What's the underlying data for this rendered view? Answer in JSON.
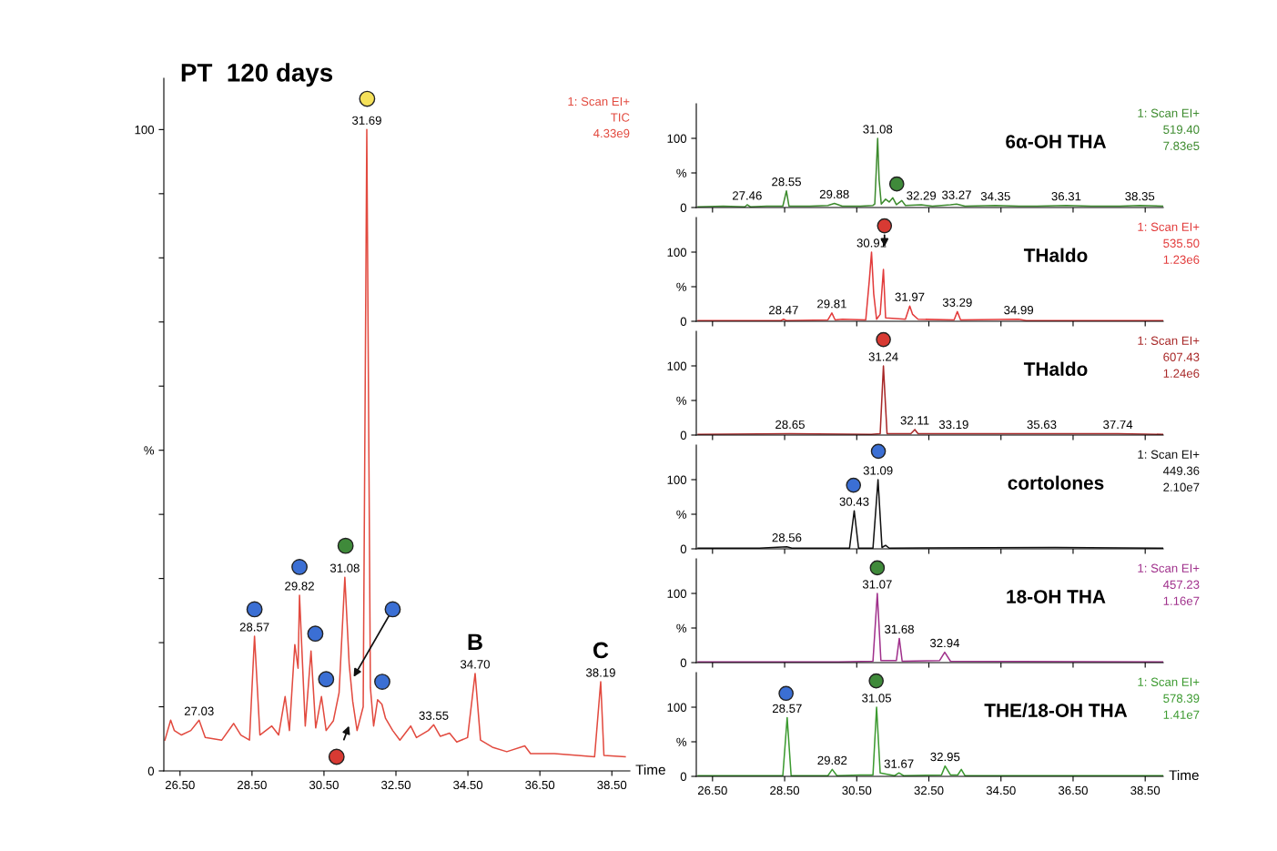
{
  "chart_data": [
    {
      "type": "line",
      "title": "PT  120 days",
      "xlabel": "Time",
      "xlim": [
        26.05,
        39.0
      ],
      "xticks": [
        {
          "value": 26.5,
          "label": "26.50"
        },
        {
          "value": 28.5,
          "label": "28.50"
        },
        {
          "value": 30.5,
          "label": "30.50"
        },
        {
          "value": 32.5,
          "label": "32.50"
        },
        {
          "value": 34.5,
          "label": "34.50"
        },
        {
          "value": 36.5,
          "label": "36.50"
        },
        {
          "value": 38.5,
          "label": "38.50"
        }
      ],
      "ylim": [
        0,
        108
      ],
      "yticks": [
        0,
        {
          "value": 10,
          "label": null
        },
        {
          "value": 20,
          "label": null
        },
        {
          "value": 30,
          "label": null
        },
        {
          "value": 40,
          "label": null
        },
        {
          "value": 50,
          "label": "%"
        },
        {
          "value": 60,
          "label": null
        },
        {
          "value": 70,
          "label": null
        },
        {
          "value": 80,
          "label": null
        },
        {
          "value": 90,
          "label": null
        },
        100
      ],
      "annotations": [
        {
          "text": "27.03",
          "x": 27.03,
          "y": 7.9
        },
        {
          "text": "28.57",
          "x": 28.57,
          "y": 21.0
        },
        {
          "text": "29.82",
          "x": 29.82,
          "y": 27.4
        },
        {
          "text": "31.08",
          "x": 31.08,
          "y": 30.2
        },
        {
          "text": "31.69",
          "x": 31.69,
          "y": 100
        },
        {
          "text": "33.55",
          "x": 33.55,
          "y": 7.2
        },
        {
          "text": "34.70",
          "x": 34.7,
          "y": 15.2
        },
        {
          "text": "B",
          "x": 34.7,
          "y": 15.2
        },
        {
          "text": "38.19",
          "x": 38.19,
          "y": 13.9
        },
        {
          "text": "C",
          "x": 38.19,
          "y": 13.9
        },
        "1: Scan EI+",
        "TIC",
        "4.33e9"
      ],
      "series": [
        {
          "color": "#e24a3f",
          "x": [
            26.08,
            26.24,
            26.34,
            26.54,
            26.8,
            27.03,
            27.2,
            27.66,
            27.99,
            28.19,
            28.43,
            28.57,
            28.72,
            29.05,
            29.24,
            29.42,
            29.54,
            29.69,
            29.78,
            29.82,
            29.98,
            30.14,
            30.27,
            30.43,
            30.56,
            30.76,
            30.92,
            31.08,
            31.2,
            31.3,
            31.42,
            31.59,
            31.69,
            31.79,
            31.88,
            31.99,
            32.11,
            32.21,
            32.41,
            32.61,
            32.91,
            33.07,
            33.4,
            33.55,
            33.73,
            33.99,
            34.19,
            34.49,
            34.7,
            34.85,
            35.18,
            35.58,
            36.08,
            36.24,
            36.9,
            37.56,
            38.02,
            38.19,
            38.28,
            38.87
          ],
          "values": [
            4.8,
            7.9,
            6.3,
            5.6,
            6.3,
            7.9,
            5.2,
            4.8,
            7.4,
            5.6,
            4.8,
            21.0,
            5.6,
            7.0,
            5.6,
            11.6,
            6.3,
            19.7,
            16.0,
            27.4,
            7.0,
            18.7,
            6.7,
            11.6,
            6.3,
            7.8,
            12.2,
            30.2,
            16.7,
            10.8,
            6.3,
            10.0,
            100,
            13.0,
            7.0,
            11.1,
            10.4,
            8.2,
            6.3,
            4.8,
            7.0,
            5.2,
            6.3,
            7.2,
            5.4,
            5.9,
            4.5,
            5.2,
            15.2,
            4.8,
            3.7,
            3.0,
            3.9,
            2.7,
            2.7,
            2.4,
            2.2,
            13.9,
            2.4,
            2.2
          ]
        },
        {
          "type": "scatter",
          "marker": "circle",
          "x": [
            28.57,
            29.82,
            30.26,
            30.56,
            31.1,
            31.7,
            32.41,
            32.12,
            30.85
          ],
          "values": [
            25.2,
            31.8,
            21.4,
            14.3,
            35.1,
            104.8,
            25.2,
            13.9,
            2.2
          ],
          "colors": [
            "#3b6fd4",
            "#3b6fd4",
            "#3b6fd4",
            "#3b6fd4",
            "#3f8a3a",
            "#f5e15a",
            "#3b6fd4",
            "#3b6fd4",
            "#d83a33"
          ]
        }
      ]
    },
    {
      "type": "line",
      "title": "6α-OH THA",
      "xlim": [
        26.05,
        39.0
      ],
      "xticks": [
        {
          "value": 26.5,
          "label": null
        },
        {
          "value": 28.5,
          "label": null
        },
        {
          "value": 30.5,
          "label": null
        },
        {
          "value": 32.5,
          "label": null
        },
        {
          "value": 34.5,
          "label": null
        },
        {
          "value": 36.5,
          "label": null
        },
        {
          "value": 38.5,
          "label": null
        }
      ],
      "ylim": [
        0,
        150
      ],
      "yticks": [
        0,
        {
          "value": 50,
          "label": "%"
        },
        100
      ],
      "tick_labels": "y",
      "annotations": [
        {
          "text": "27.46",
          "x": 27.46,
          "y": 4
        },
        {
          "text": "28.55",
          "x": 28.55,
          "y": 24
        },
        {
          "text": "29.88",
          "x": 29.88,
          "y": 6
        },
        {
          "text": "31.08",
          "x": 31.08,
          "y": 100
        },
        {
          "text": "32.29",
          "x": 32.29,
          "y": 4
        },
        {
          "text": "33.27",
          "x": 33.27,
          "y": 5
        },
        {
          "text": "34.35",
          "x": 34.35,
          "y": 3
        },
        {
          "text": "36.31",
          "x": 36.31,
          "y": 3
        },
        {
          "text": "38.35",
          "x": 38.35,
          "y": 3
        },
        "1: Scan EI+",
        "519.40",
        "7.83e5"
      ],
      "series": [
        {
          "color": "#3d8b2e",
          "x": [
            26.1,
            26.8,
            27.4,
            27.46,
            27.55,
            28.0,
            28.45,
            28.55,
            28.62,
            29.2,
            29.7,
            29.88,
            30.1,
            30.6,
            30.95,
            31.0,
            31.08,
            31.12,
            31.18,
            31.3,
            31.4,
            31.5,
            31.6,
            31.75,
            31.85,
            32.29,
            32.6,
            33.1,
            33.27,
            33.5,
            34.35,
            35.0,
            35.5,
            36.31,
            37.0,
            37.8,
            38.35,
            39.0
          ],
          "values": [
            1,
            2,
            1,
            4,
            1,
            2,
            2,
            24,
            2,
            2,
            3,
            6,
            2,
            2,
            3,
            5,
            100,
            40,
            5,
            12,
            8,
            14,
            4,
            10,
            3,
            4,
            2,
            4,
            5,
            2,
            3,
            2,
            2,
            3,
            2,
            2,
            3,
            2
          ]
        },
        {
          "type": "scatter",
          "marker": "circle",
          "x": [
            31.61
          ],
          "values": [
            34
          ],
          "colors": [
            "#3f8a3a"
          ]
        }
      ]
    },
    {
      "type": "line",
      "title": "THaldo",
      "xlim": [
        26.05,
        39.0
      ],
      "xticks": [
        {
          "value": 26.5,
          "label": null
        },
        {
          "value": 28.5,
          "label": null
        },
        {
          "value": 30.5,
          "label": null
        },
        {
          "value": 32.5,
          "label": null
        },
        {
          "value": 34.5,
          "label": null
        },
        {
          "value": 36.5,
          "label": null
        },
        {
          "value": 38.5,
          "label": null
        }
      ],
      "ylim": [
        0,
        150
      ],
      "yticks": [
        0,
        {
          "value": 50,
          "label": "%"
        },
        100
      ],
      "tick_labels": "y",
      "annotations": [
        {
          "text": "28.47",
          "x": 28.47,
          "y": 3
        },
        {
          "text": "29.81",
          "x": 29.81,
          "y": 12
        },
        {
          "text": "30.91",
          "x": 30.91,
          "y": 100
        },
        {
          "text": "31.97",
          "x": 31.97,
          "y": 22
        },
        {
          "text": "33.29",
          "x": 33.29,
          "y": 14
        },
        {
          "text": "34.99",
          "x": 34.99,
          "y": 3
        },
        "1: Scan EI+",
        "535.50",
        "1.23e6"
      ],
      "series": [
        {
          "color": "#e23b3b",
          "x": [
            26.1,
            28.4,
            28.47,
            28.55,
            29.7,
            29.81,
            29.9,
            30.1,
            30.75,
            30.85,
            30.91,
            30.97,
            31.05,
            31.15,
            31.24,
            31.3,
            31.85,
            31.97,
            32.05,
            32.2,
            33.2,
            33.29,
            33.38,
            34.99,
            35.2,
            39.0
          ],
          "values": [
            1,
            1,
            3,
            1,
            2,
            12,
            2,
            3,
            2,
            60,
            100,
            40,
            3,
            10,
            75,
            5,
            3,
            22,
            10,
            3,
            2,
            14,
            2,
            3,
            1,
            1
          ]
        },
        {
          "type": "scatter",
          "marker": "circle",
          "x": [
            31.27
          ],
          "values": [
            138
          ],
          "colors": [
            "#d83a33"
          ]
        }
      ]
    },
    {
      "type": "line",
      "title": "THaldo",
      "xlim": [
        26.05,
        39.0
      ],
      "xticks": [
        {
          "value": 26.5,
          "label": null
        },
        {
          "value": 28.5,
          "label": null
        },
        {
          "value": 30.5,
          "label": null
        },
        {
          "value": 32.5,
          "label": null
        },
        {
          "value": 34.5,
          "label": null
        },
        {
          "value": 36.5,
          "label": null
        },
        {
          "value": 38.5,
          "label": null
        }
      ],
      "ylim": [
        0,
        150
      ],
      "yticks": [
        0,
        {
          "value": 50,
          "label": "%"
        },
        100
      ],
      "tick_labels": "y",
      "annotations": [
        {
          "text": "28.65",
          "x": 28.65,
          "y": 2
        },
        {
          "text": "31.24",
          "x": 31.24,
          "y": 100
        },
        {
          "text": "32.11",
          "x": 32.11,
          "y": 8
        },
        {
          "text": "33.19",
          "x": 33.19,
          "y": 2
        },
        {
          "text": "35.63",
          "x": 35.63,
          "y": 2
        },
        {
          "text": "37.74",
          "x": 37.74,
          "y": 2
        },
        "1: Scan EI+",
        "607.43",
        "1.24e6"
      ],
      "series": [
        {
          "color": "#a82828",
          "x": [
            26.1,
            28.65,
            30.9,
            31.15,
            31.24,
            31.28,
            31.34,
            32.0,
            32.11,
            32.2,
            33.19,
            35.63,
            37.74,
            39.0
          ],
          "values": [
            1,
            2,
            1,
            2,
            100,
            60,
            2,
            2,
            8,
            2,
            2,
            2,
            2,
            1
          ]
        },
        {
          "type": "scatter",
          "marker": "circle",
          "x": [
            31.24
          ],
          "values": [
            138
          ],
          "colors": [
            "#d83a33"
          ]
        }
      ]
    },
    {
      "type": "line",
      "title": "cortolones",
      "xlim": [
        26.05,
        39.0
      ],
      "xticks": [
        {
          "value": 26.5,
          "label": null
        },
        {
          "value": 28.5,
          "label": null
        },
        {
          "value": 30.5,
          "label": null
        },
        {
          "value": 32.5,
          "label": null
        },
        {
          "value": 34.5,
          "label": null
        },
        {
          "value": 36.5,
          "label": null
        },
        {
          "value": 38.5,
          "label": null
        }
      ],
      "ylim": [
        0,
        150
      ],
      "yticks": [
        0,
        {
          "value": 50,
          "label": "%"
        },
        100
      ],
      "tick_labels": "y",
      "annotations": [
        {
          "text": "28.56",
          "x": 28.56,
          "y": 3
        },
        {
          "text": "30.43",
          "x": 30.43,
          "y": 55
        },
        {
          "text": "31.09",
          "x": 31.09,
          "y": 100
        },
        "1: Scan EI+",
        "449.36",
        "2.10e7"
      ],
      "series": [
        {
          "color": "#111111",
          "x": [
            26.1,
            27.8,
            28.56,
            28.7,
            30.3,
            30.43,
            30.55,
            30.95,
            31.09,
            31.2,
            31.3,
            31.4,
            36.0,
            39.0
          ],
          "values": [
            1,
            1,
            3,
            1,
            1,
            55,
            1,
            1,
            100,
            2,
            5,
            1,
            2,
            1
          ]
        },
        {
          "type": "scatter",
          "marker": "circle",
          "x": [
            31.1,
            30.41
          ],
          "values": [
            141,
            92
          ],
          "colors": [
            "#3b6fd4",
            "#3b6fd4"
          ]
        }
      ]
    },
    {
      "type": "line",
      "title": "18-OH THA",
      "xlim": [
        26.05,
        39.0
      ],
      "xticks": [
        {
          "value": 26.5,
          "label": null
        },
        {
          "value": 28.5,
          "label": null
        },
        {
          "value": 30.5,
          "label": null
        },
        {
          "value": 32.5,
          "label": null
        },
        {
          "value": 34.5,
          "label": null
        },
        {
          "value": 36.5,
          "label": null
        },
        {
          "value": 38.5,
          "label": null
        }
      ],
      "ylim": [
        0,
        150
      ],
      "yticks": [
        0,
        {
          "value": 50,
          "label": "%"
        },
        100
      ],
      "tick_labels": "y",
      "annotations": [
        {
          "text": "31.07",
          "x": 31.07,
          "y": 100
        },
        {
          "text": "31.68",
          "x": 31.68,
          "y": 35
        },
        {
          "text": "32.94",
          "x": 32.94,
          "y": 15
        },
        "1: Scan EI+",
        "457.23",
        "1.16e7"
      ],
      "series": [
        {
          "color": "#a0318c",
          "x": [
            26.1,
            30.0,
            30.95,
            31.07,
            31.17,
            31.6,
            31.68,
            31.76,
            32.8,
            32.94,
            33.1,
            39.0
          ],
          "values": [
            1,
            1,
            2,
            100,
            3,
            3,
            35,
            2,
            3,
            15,
            2,
            1
          ]
        },
        {
          "type": "scatter",
          "marker": "circle",
          "x": [
            31.07
          ],
          "values": [
            137
          ],
          "colors": [
            "#3f8a3a"
          ]
        }
      ]
    },
    {
      "type": "line",
      "title": "THE/18-OH THA",
      "xlabel": "Time",
      "xlim": [
        26.05,
        39.0
      ],
      "xticks": [
        {
          "value": 26.5,
          "label": "26.50"
        },
        {
          "value": 28.5,
          "label": "28.50"
        },
        {
          "value": 30.5,
          "label": "30.50"
        },
        {
          "value": 32.5,
          "label": "32.50"
        },
        {
          "value": 34.5,
          "label": "34.50"
        },
        {
          "value": 36.5,
          "label": "36.50"
        },
        {
          "value": 38.5,
          "label": "38.50"
        }
      ],
      "ylim": [
        0,
        150
      ],
      "yticks": [
        0,
        {
          "value": 50,
          "label": "%"
        },
        100
      ],
      "annotations": [
        {
          "text": "28.57",
          "x": 28.57,
          "y": 85
        },
        {
          "text": "29.82",
          "x": 29.82,
          "y": 10
        },
        {
          "text": "31.05",
          "x": 31.05,
          "y": 100
        },
        {
          "text": "31.67",
          "x": 31.67,
          "y": 5
        },
        {
          "text": "32.95",
          "x": 32.95,
          "y": 15
        },
        "1: Scan EI+",
        "578.39",
        "1.41e7"
      ],
      "series": [
        {
          "color": "#3c9a30",
          "x": [
            26.1,
            28.45,
            28.57,
            28.68,
            29.7,
            29.82,
            29.95,
            30.6,
            30.95,
            31.05,
            31.15,
            31.55,
            31.67,
            31.8,
            32.85,
            32.95,
            33.1,
            33.3,
            33.4,
            33.5,
            39.0
          ],
          "values": [
            1,
            1,
            85,
            1,
            1,
            10,
            1,
            2,
            2,
            100,
            5,
            1,
            5,
            1,
            2,
            15,
            2,
            2,
            10,
            1,
            1
          ]
        },
        {
          "type": "scatter",
          "marker": "circle",
          "x": [
            28.54,
            31.04
          ],
          "values": [
            120,
            138
          ],
          "colors": [
            "#3b6fd4",
            "#3f8a3a"
          ]
        }
      ]
    }
  ]
}
